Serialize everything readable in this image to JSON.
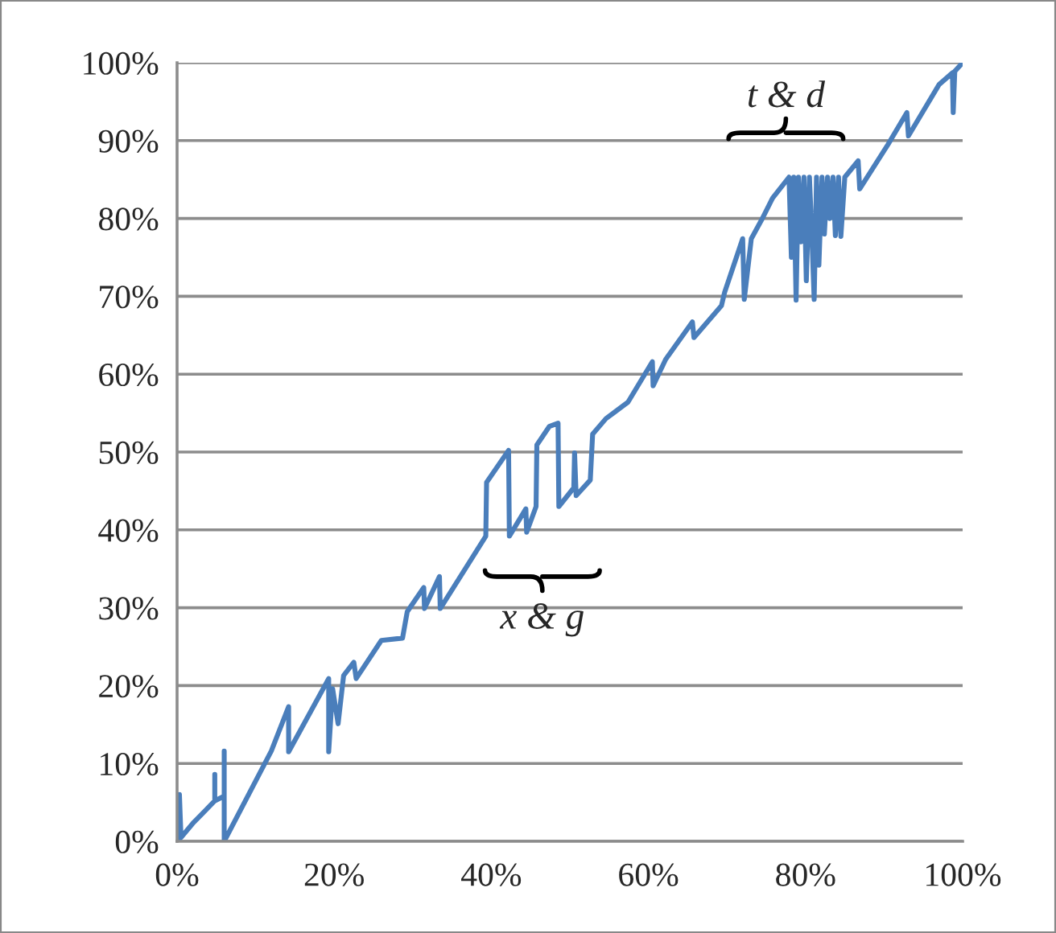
{
  "chart_data": {
    "type": "line",
    "x": [
      0.3,
      0.3,
      0.5,
      2,
      4.8,
      4.8,
      4.8,
      6,
      6,
      6,
      12,
      14.2,
      14.2,
      19.3,
      19.3,
      19.8,
      20.5,
      21.2,
      22.5,
      22.8,
      26,
      28.7,
      29.3,
      31.4,
      31.5,
      33.4,
      33.5,
      39.3,
      39.4,
      42.2,
      42.3,
      44.4,
      44.5,
      45.7,
      45.8,
      47.4,
      48.5,
      48.6,
      50.5,
      50.6,
      50.8,
      52.6,
      52.9,
      54.6,
      57.4,
      60.5,
      60.6,
      62.2,
      65.6,
      65.8,
      69.3,
      69.7,
      72,
      72.2,
      73.1,
      74.4,
      75.8,
      77.9,
      78.2,
      78.5,
      78.8,
      79.1,
      79.4,
      79.8,
      80.1,
      80.5,
      80.8,
      81.1,
      81.4,
      81.7,
      82.1,
      82.4,
      82.8,
      83.1,
      83.5,
      83.8,
      84.2,
      84.5,
      85,
      86.7,
      86.9,
      90.5,
      92.9,
      93.1,
      97,
      98.7,
      98.8,
      99,
      100
    ],
    "series": [
      {
        "color": "#4a7ebb",
        "values": [
          0,
          6,
          0.5,
          2.3,
          5.2,
          8.6,
          5.2,
          5.8,
          11.6,
          0,
          11.6,
          17.3,
          11.5,
          20.9,
          11.5,
          19.6,
          15.1,
          21.3,
          23,
          20.9,
          25.8,
          26.1,
          29.5,
          32.6,
          29.9,
          34,
          29.9,
          39.2,
          46.1,
          50.2,
          39.2,
          42.7,
          39.7,
          43,
          50.9,
          53.3,
          53.7,
          43,
          45.4,
          49.9,
          44.4,
          46.4,
          52.3,
          54.3,
          56.4,
          61.6,
          58.5,
          61.9,
          66.7,
          64.7,
          68.8,
          70.5,
          77.4,
          69.6,
          77.4,
          79.8,
          82.6,
          85.3,
          75,
          85.3,
          69.5,
          85.3,
          77,
          85.3,
          72,
          85.3,
          78,
          69.6,
          85.3,
          74,
          85.3,
          78,
          85.3,
          80,
          85.3,
          77.8,
          85.3,
          77.7,
          85.3,
          87.4,
          83.8,
          89.5,
          93.6,
          90.6,
          97.2,
          98.7,
          93.6,
          98.9,
          100
        ]
      }
    ],
    "xlim": [
      0,
      100
    ],
    "ylim": [
      0,
      100
    ],
    "xticks": [
      {
        "value": 0,
        "label": "0%"
      },
      {
        "value": 20,
        "label": "20%"
      },
      {
        "value": 40,
        "label": "40%"
      },
      {
        "value": 60,
        "label": "60%"
      },
      {
        "value": 80,
        "label": "80%"
      },
      {
        "value": 100,
        "label": "100%"
      }
    ],
    "yticks": [
      {
        "value": 0,
        "label": "0%"
      },
      {
        "value": 10,
        "label": "10%"
      },
      {
        "value": 20,
        "label": "20%"
      },
      {
        "value": 30,
        "label": "30%"
      },
      {
        "value": 40,
        "label": "40%"
      },
      {
        "value": 50,
        "label": "50%"
      },
      {
        "value": 60,
        "label": "60%"
      },
      {
        "value": 70,
        "label": "70%"
      },
      {
        "value": 80,
        "label": "80%"
      },
      {
        "value": 90,
        "label": "90%"
      },
      {
        "value": 100,
        "label": "100%"
      }
    ],
    "grid": "y",
    "legend": false,
    "marker": "none",
    "line_style": "solid",
    "annotations": [
      "t & d",
      "x & g"
    ]
  }
}
